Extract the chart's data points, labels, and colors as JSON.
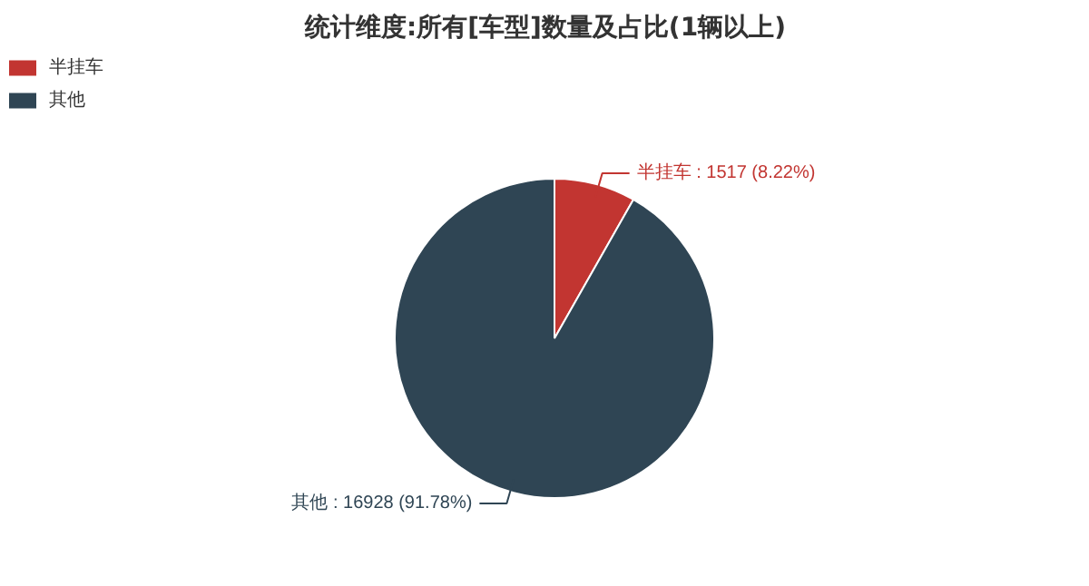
{
  "chart_data": {
    "type": "pie",
    "title": "统计维度:所有[车型]数量及占比(1辆以上)",
    "categories": [
      "半挂车",
      "其他"
    ],
    "values": [
      1517,
      16928
    ],
    "colors": [
      "#c23531",
      "#2f4554"
    ],
    "value_labels": [
      "半挂车 : 1517 (8.22%)",
      "其他 : 16928 (91.78%)"
    ],
    "legend": "top left"
  }
}
